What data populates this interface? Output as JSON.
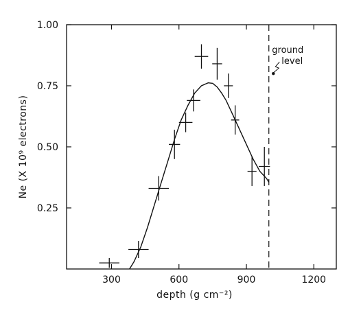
{
  "chart_data": {
    "type": "scatter",
    "xlabel": "depth (g cm⁻²)",
    "ylabel": "Ne (X 10⁹ electrons)",
    "xlim": [
      100,
      1300
    ],
    "ylim": [
      0,
      1.0
    ],
    "x_ticks": [
      300,
      600,
      900,
      1200
    ],
    "x_tick_labels": [
      "300",
      "600",
      "900",
      "1200"
    ],
    "y_ticks": [
      0.25,
      0.5,
      0.75,
      1.0
    ],
    "y_tick_labels": [
      "0.25",
      "0.50",
      "0.75",
      "1.00"
    ],
    "grid": false,
    "series": [
      {
        "kind": "errorbar",
        "points": [
          {
            "x": 290,
            "y": 0.025,
            "xerr": 45,
            "yerr": 0.02
          },
          {
            "x": 420,
            "y": 0.08,
            "xerr": 45,
            "yerr": 0.035
          },
          {
            "x": 510,
            "y": 0.33,
            "xerr": 45,
            "yerr": 0.05
          },
          {
            "x": 580,
            "y": 0.51,
            "xerr": 25,
            "yerr": 0.06
          },
          {
            "x": 630,
            "y": 0.6,
            "xerr": 30,
            "yerr": 0.04
          },
          {
            "x": 665,
            "y": 0.69,
            "xerr": 30,
            "yerr": 0.045
          },
          {
            "x": 700,
            "y": 0.87,
            "xerr": 30,
            "yerr": 0.05
          },
          {
            "x": 770,
            "y": 0.84,
            "xerr": 22,
            "yerr": 0.065
          },
          {
            "x": 820,
            "y": 0.75,
            "xerr": 20,
            "yerr": 0.05
          },
          {
            "x": 850,
            "y": 0.61,
            "xerr": 18,
            "yerr": 0.06
          },
          {
            "x": 925,
            "y": 0.4,
            "xerr": 20,
            "yerr": 0.06
          },
          {
            "x": 980,
            "y": 0.42,
            "xerr": 25,
            "yerr": 0.08
          }
        ]
      },
      {
        "kind": "line",
        "x": [
          380,
          400,
          430,
          460,
          490,
          520,
          550,
          580,
          610,
          640,
          670,
          700,
          730,
          750,
          770,
          790,
          810,
          840,
          870,
          900,
          930,
          960,
          990,
          1000
        ],
        "y": [
          0.0,
          0.03,
          0.09,
          0.17,
          0.26,
          0.35,
          0.44,
          0.53,
          0.61,
          0.67,
          0.72,
          0.75,
          0.762,
          0.76,
          0.745,
          0.72,
          0.69,
          0.63,
          0.57,
          0.51,
          0.45,
          0.4,
          0.37,
          0.355
        ]
      }
    ],
    "vline": {
      "x": 1000
    },
    "annotation": {
      "lines": [
        "ground",
        "level"
      ],
      "x": 1020,
      "y": 0.8
    }
  }
}
